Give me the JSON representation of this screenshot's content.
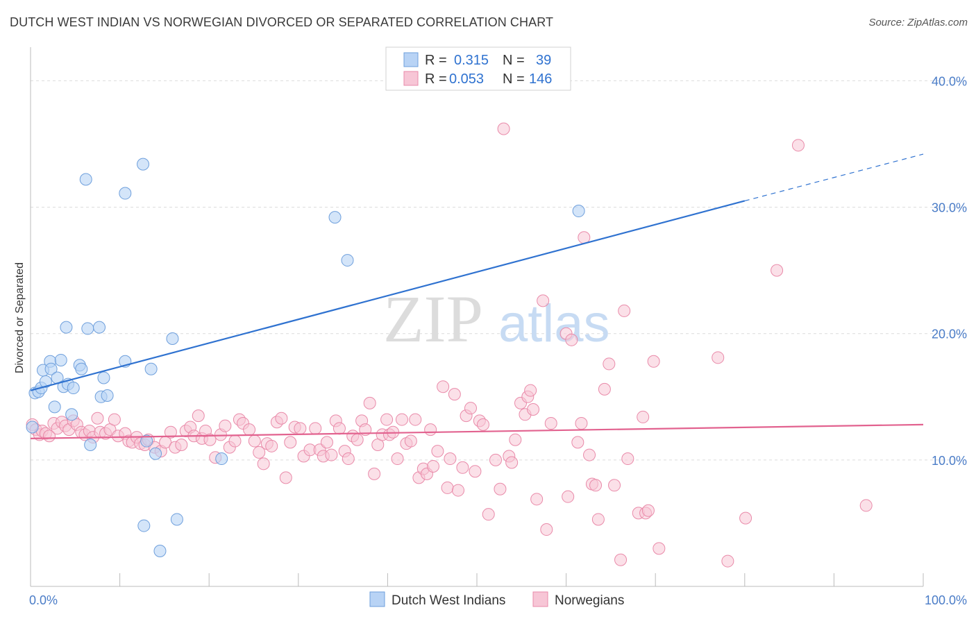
{
  "title": "DUTCH WEST INDIAN VS NORWEGIAN DIVORCED OR SEPARATED CORRELATION CHART",
  "source": "Source: ZipAtlas.com",
  "watermark": {
    "zip": "ZIP",
    "atlas": "atlas"
  },
  "legend": {
    "rows": [
      {
        "r_label": "R =",
        "r_value": "0.315",
        "n_label": "N =",
        "n_value": "39"
      },
      {
        "r_label": "R =",
        "r_value": "0.053",
        "n_label": "N =",
        "n_value": "146"
      }
    ]
  },
  "bottom_legend": {
    "series1": "Dutch West Indians",
    "series2": "Norwegians"
  },
  "colors": {
    "blue_fill": "#b8d3f5",
    "blue_stroke": "#6e9fdc",
    "blue_line": "#2f72d0",
    "pink_fill": "#f7c6d6",
    "pink_stroke": "#e98aa9",
    "pink_line": "#e2628f",
    "tick_blue": "#4a7cc7",
    "grid": "#dcdcdc"
  },
  "chart_data": {
    "type": "scatter",
    "title": "DUTCH WEST INDIAN VS NORWEGIAN DIVORCED OR SEPARATED CORRELATION CHART",
    "xlabel": "",
    "ylabel": "Divorced or Separated",
    "xlim": [
      0,
      100
    ],
    "ylim": [
      0,
      42
    ],
    "x_tick_labels": [
      {
        "value": 0,
        "label": "0.0%"
      },
      {
        "value": 100,
        "label": "100.0%"
      }
    ],
    "y_tick_labels": [
      {
        "value": 10,
        "label": "10.0%"
      },
      {
        "value": 20,
        "label": "20.0%"
      },
      {
        "value": 30,
        "label": "30.0%"
      },
      {
        "value": 40,
        "label": "40.0%"
      }
    ],
    "grid": true,
    "legend_position": "top-center",
    "series": [
      {
        "name": "Dutch West Indians",
        "r": 0.315,
        "n": 39,
        "trend": {
          "x": [
            0,
            80
          ],
          "y": [
            15.5,
            30.5
          ],
          "dashed_to": [
            100,
            34.2
          ]
        },
        "points": [
          [
            0.2,
            12.6
          ],
          [
            0.5,
            15.3
          ],
          [
            0.9,
            15.4
          ],
          [
            1.2,
            15.7
          ],
          [
            1.4,
            17.1
          ],
          [
            1.7,
            16.2
          ],
          [
            2.2,
            17.8
          ],
          [
            2.3,
            17.2
          ],
          [
            2.7,
            14.2
          ],
          [
            3.0,
            16.5
          ],
          [
            3.4,
            17.9
          ],
          [
            3.7,
            15.8
          ],
          [
            4.0,
            20.5
          ],
          [
            4.2,
            16.0
          ],
          [
            4.8,
            15.7
          ],
          [
            4.6,
            13.6
          ],
          [
            5.5,
            17.5
          ],
          [
            5.7,
            17.2
          ],
          [
            6.2,
            32.2
          ],
          [
            6.4,
            20.4
          ],
          [
            6.7,
            11.2
          ],
          [
            7.7,
            20.5
          ],
          [
            7.9,
            15.0
          ],
          [
            8.2,
            16.5
          ],
          [
            8.6,
            15.1
          ],
          [
            10.6,
            31.1
          ],
          [
            10.6,
            17.8
          ],
          [
            12.6,
            33.4
          ],
          [
            12.7,
            4.8
          ],
          [
            13.0,
            11.5
          ],
          [
            13.5,
            17.2
          ],
          [
            14.0,
            10.5
          ],
          [
            14.5,
            2.8
          ],
          [
            15.9,
            19.6
          ],
          [
            16.4,
            5.3
          ],
          [
            21.4,
            10.1
          ],
          [
            34.1,
            29.2
          ],
          [
            35.5,
            25.8
          ],
          [
            61.4,
            29.7
          ]
        ]
      },
      {
        "name": "Norwegians",
        "r": 0.053,
        "n": 146,
        "trend": {
          "x": [
            0,
            100
          ],
          "y": [
            11.7,
            12.8
          ]
        },
        "points": [
          [
            0.2,
            12.8
          ],
          [
            0.6,
            12.4
          ],
          [
            1.0,
            12.0
          ],
          [
            1.3,
            12.3
          ],
          [
            1.7,
            12.1
          ],
          [
            2.1,
            11.9
          ],
          [
            2.6,
            12.9
          ],
          [
            3.0,
            12.5
          ],
          [
            3.5,
            13.0
          ],
          [
            3.9,
            12.7
          ],
          [
            4.3,
            12.4
          ],
          [
            4.8,
            13.1
          ],
          [
            5.2,
            12.8
          ],
          [
            5.7,
            12.2
          ],
          [
            6.1,
            12.0
          ],
          [
            6.6,
            12.3
          ],
          [
            7.0,
            11.8
          ],
          [
            7.5,
            13.3
          ],
          [
            7.8,
            12.2
          ],
          [
            8.4,
            12.1
          ],
          [
            8.9,
            12.4
          ],
          [
            9.4,
            13.2
          ],
          [
            9.8,
            11.9
          ],
          [
            10.6,
            12.1
          ],
          [
            11.0,
            11.5
          ],
          [
            11.4,
            11.4
          ],
          [
            11.9,
            11.8
          ],
          [
            12.3,
            11.3
          ],
          [
            12.8,
            11.2
          ],
          [
            13.2,
            11.6
          ],
          [
            13.9,
            11.0
          ],
          [
            14.6,
            10.7
          ],
          [
            15.1,
            11.4
          ],
          [
            15.7,
            12.2
          ],
          [
            16.2,
            11.0
          ],
          [
            16.9,
            11.2
          ],
          [
            17.4,
            12.3
          ],
          [
            17.9,
            12.6
          ],
          [
            18.3,
            11.9
          ],
          [
            18.8,
            13.5
          ],
          [
            19.2,
            11.7
          ],
          [
            19.6,
            12.3
          ],
          [
            20.1,
            11.6
          ],
          [
            20.7,
            10.2
          ],
          [
            21.3,
            12.0
          ],
          [
            21.8,
            12.7
          ],
          [
            22.3,
            11.0
          ],
          [
            22.9,
            11.5
          ],
          [
            23.4,
            13.2
          ],
          [
            23.8,
            12.9
          ],
          [
            24.5,
            12.4
          ],
          [
            25.1,
            11.5
          ],
          [
            25.6,
            10.6
          ],
          [
            26.1,
            9.7
          ],
          [
            26.5,
            11.3
          ],
          [
            27.0,
            11.1
          ],
          [
            27.6,
            13.0
          ],
          [
            28.1,
            13.3
          ],
          [
            28.6,
            8.6
          ],
          [
            29.1,
            11.4
          ],
          [
            29.6,
            12.6
          ],
          [
            30.2,
            12.5
          ],
          [
            30.6,
            10.3
          ],
          [
            31.3,
            10.8
          ],
          [
            31.9,
            12.5
          ],
          [
            32.4,
            10.8
          ],
          [
            32.8,
            10.3
          ],
          [
            33.2,
            11.4
          ],
          [
            33.7,
            10.4
          ],
          [
            34.2,
            13.1
          ],
          [
            34.6,
            12.5
          ],
          [
            35.2,
            10.7
          ],
          [
            35.6,
            10.1
          ],
          [
            36.1,
            11.9
          ],
          [
            36.6,
            11.6
          ],
          [
            37.1,
            13.1
          ],
          [
            37.5,
            12.4
          ],
          [
            38.0,
            14.5
          ],
          [
            38.5,
            8.9
          ],
          [
            38.9,
            11.2
          ],
          [
            39.4,
            12.0
          ],
          [
            39.9,
            13.2
          ],
          [
            40.2,
            12.0
          ],
          [
            40.6,
            12.2
          ],
          [
            41.1,
            10.1
          ],
          [
            41.6,
            13.2
          ],
          [
            42.1,
            11.3
          ],
          [
            42.6,
            11.5
          ],
          [
            43.1,
            13.2
          ],
          [
            43.5,
            8.6
          ],
          [
            44.0,
            9.3
          ],
          [
            44.4,
            8.9
          ],
          [
            44.8,
            12.4
          ],
          [
            45.1,
            9.5
          ],
          [
            45.6,
            10.7
          ],
          [
            46.2,
            15.8
          ],
          [
            46.7,
            7.8
          ],
          [
            47.0,
            10.1
          ],
          [
            47.5,
            15.2
          ],
          [
            47.9,
            7.6
          ],
          [
            48.4,
            9.4
          ],
          [
            48.8,
            13.5
          ],
          [
            49.3,
            14.1
          ],
          [
            49.8,
            9.1
          ],
          [
            50.3,
            13.1
          ],
          [
            50.7,
            12.8
          ],
          [
            51.3,
            5.7
          ],
          [
            52.1,
            10.0
          ],
          [
            52.6,
            7.7
          ],
          [
            53.0,
            36.2
          ],
          [
            53.6,
            10.3
          ],
          [
            53.9,
            9.8
          ],
          [
            54.3,
            11.6
          ],
          [
            54.9,
            14.5
          ],
          [
            55.4,
            13.6
          ],
          [
            55.7,
            15.0
          ],
          [
            56.0,
            15.5
          ],
          [
            56.3,
            14.0
          ],
          [
            56.7,
            6.9
          ],
          [
            57.4,
            22.6
          ],
          [
            57.8,
            4.5
          ],
          [
            58.3,
            12.9
          ],
          [
            60.0,
            20.0
          ],
          [
            60.2,
            7.1
          ],
          [
            60.6,
            19.5
          ],
          [
            61.3,
            11.4
          ],
          [
            61.7,
            12.9
          ],
          [
            62.0,
            27.6
          ],
          [
            62.6,
            10.4
          ],
          [
            62.9,
            8.1
          ],
          [
            63.3,
            8.0
          ],
          [
            63.6,
            5.3
          ],
          [
            64.3,
            15.6
          ],
          [
            64.8,
            17.6
          ],
          [
            65.4,
            8.0
          ],
          [
            66.1,
            2.1
          ],
          [
            66.5,
            21.8
          ],
          [
            66.9,
            10.1
          ],
          [
            68.1,
            5.8
          ],
          [
            68.6,
            13.4
          ],
          [
            68.9,
            5.8
          ],
          [
            69.2,
            6.0
          ],
          [
            69.8,
            17.8
          ],
          [
            70.4,
            3.0
          ],
          [
            77.0,
            18.1
          ],
          [
            78.1,
            2.0
          ],
          [
            80.1,
            5.4
          ],
          [
            83.6,
            25.0
          ],
          [
            86.0,
            34.9
          ],
          [
            93.6,
            6.4
          ]
        ]
      }
    ]
  }
}
